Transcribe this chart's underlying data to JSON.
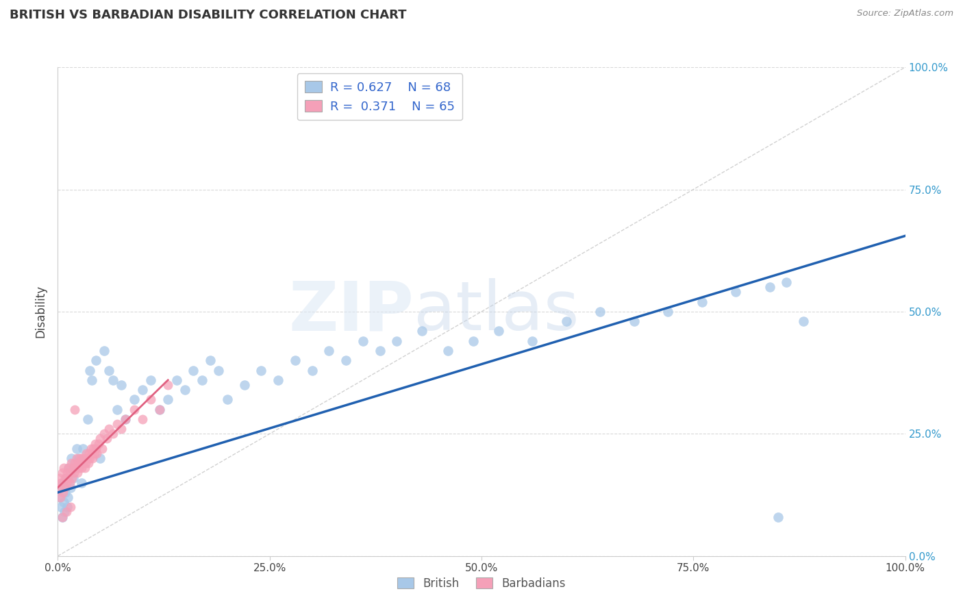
{
  "title": "BRITISH VS BARBADIAN DISABILITY CORRELATION CHART",
  "source": "Source: ZipAtlas.com",
  "ylabel": "Disability",
  "xlim": [
    0,
    1.0
  ],
  "ylim": [
    0,
    1.0
  ],
  "xtick_labels": [
    "0.0%",
    "25.0%",
    "50.0%",
    "75.0%",
    "100.0%"
  ],
  "ytick_labels_right": [
    "0.0%",
    "25.0%",
    "50.0%",
    "75.0%",
    "100.0%"
  ],
  "british_R": 0.627,
  "british_N": 68,
  "barbadian_R": 0.371,
  "barbadian_N": 65,
  "british_color": "#a8c8e8",
  "barbadian_color": "#f5a0b8",
  "british_line_color": "#2060b0",
  "barbadian_line_color": "#e06080",
  "ref_line_color": "#cccccc",
  "watermark_zip": "ZIP",
  "watermark_atlas": "atlas",
  "legend_R_color": "#3366cc",
  "british_scatter_x": [
    0.002,
    0.003,
    0.004,
    0.005,
    0.006,
    0.007,
    0.008,
    0.009,
    0.01,
    0.011,
    0.012,
    0.013,
    0.015,
    0.016,
    0.018,
    0.02,
    0.022,
    0.025,
    0.028,
    0.03,
    0.035,
    0.038,
    0.04,
    0.045,
    0.05,
    0.055,
    0.06,
    0.065,
    0.07,
    0.075,
    0.08,
    0.09,
    0.1,
    0.11,
    0.12,
    0.13,
    0.14,
    0.15,
    0.16,
    0.17,
    0.18,
    0.19,
    0.2,
    0.22,
    0.24,
    0.26,
    0.28,
    0.3,
    0.32,
    0.34,
    0.36,
    0.38,
    0.4,
    0.43,
    0.46,
    0.49,
    0.52,
    0.56,
    0.6,
    0.64,
    0.68,
    0.72,
    0.76,
    0.8,
    0.84,
    0.86,
    0.88,
    0.85
  ],
  "british_scatter_y": [
    0.12,
    0.14,
    0.1,
    0.08,
    0.15,
    0.11,
    0.09,
    0.13,
    0.16,
    0.1,
    0.12,
    0.18,
    0.14,
    0.2,
    0.16,
    0.18,
    0.22,
    0.2,
    0.15,
    0.22,
    0.28,
    0.38,
    0.36,
    0.4,
    0.2,
    0.42,
    0.38,
    0.36,
    0.3,
    0.35,
    0.28,
    0.32,
    0.34,
    0.36,
    0.3,
    0.32,
    0.36,
    0.34,
    0.38,
    0.36,
    0.4,
    0.38,
    0.32,
    0.35,
    0.38,
    0.36,
    0.4,
    0.38,
    0.42,
    0.4,
    0.44,
    0.42,
    0.44,
    0.46,
    0.42,
    0.44,
    0.46,
    0.44,
    0.48,
    0.5,
    0.48,
    0.5,
    0.52,
    0.54,
    0.55,
    0.56,
    0.48,
    0.08
  ],
  "barbadian_scatter_x": [
    0.001,
    0.002,
    0.003,
    0.004,
    0.005,
    0.006,
    0.007,
    0.008,
    0.009,
    0.01,
    0.011,
    0.012,
    0.013,
    0.014,
    0.015,
    0.016,
    0.017,
    0.018,
    0.019,
    0.02,
    0.021,
    0.022,
    0.023,
    0.024,
    0.025,
    0.026,
    0.027,
    0.028,
    0.029,
    0.03,
    0.031,
    0.032,
    0.033,
    0.034,
    0.035,
    0.036,
    0.037,
    0.038,
    0.039,
    0.04,
    0.041,
    0.042,
    0.043,
    0.044,
    0.045,
    0.046,
    0.048,
    0.05,
    0.052,
    0.055,
    0.058,
    0.06,
    0.065,
    0.07,
    0.075,
    0.08,
    0.09,
    0.1,
    0.11,
    0.12,
    0.13,
    0.005,
    0.01,
    0.015,
    0.02
  ],
  "barbadian_scatter_y": [
    0.14,
    0.16,
    0.12,
    0.15,
    0.17,
    0.13,
    0.18,
    0.14,
    0.16,
    0.15,
    0.17,
    0.16,
    0.18,
    0.15,
    0.17,
    0.19,
    0.16,
    0.18,
    0.17,
    0.19,
    0.18,
    0.2,
    0.17,
    0.19,
    0.18,
    0.2,
    0.19,
    0.18,
    0.2,
    0.19,
    0.2,
    0.18,
    0.19,
    0.21,
    0.2,
    0.19,
    0.21,
    0.2,
    0.22,
    0.21,
    0.2,
    0.22,
    0.21,
    0.23,
    0.22,
    0.21,
    0.23,
    0.24,
    0.22,
    0.25,
    0.24,
    0.26,
    0.25,
    0.27,
    0.26,
    0.28,
    0.3,
    0.28,
    0.32,
    0.3,
    0.35,
    0.08,
    0.09,
    0.1,
    0.3
  ],
  "brit_line_x0": 0.0,
  "brit_line_y0": 0.13,
  "brit_line_x1": 1.0,
  "brit_line_y1": 0.655,
  "barb_line_x0": 0.0,
  "barb_line_y0": 0.14,
  "barb_line_x1": 0.13,
  "barb_line_y1": 0.36
}
